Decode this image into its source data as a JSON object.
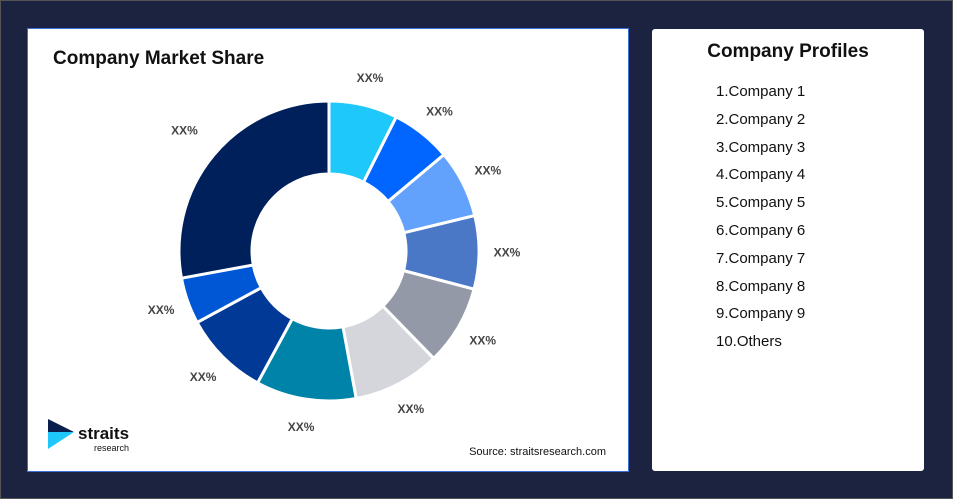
{
  "chart_data": {
    "type": "pie",
    "donut": true,
    "title": "Company Market Share",
    "categories": [
      "Company 1",
      "Company 2",
      "Company 3",
      "Company 4",
      "Company 5",
      "Company 6",
      "Company 7",
      "Company 8",
      "Company 9",
      "Others"
    ],
    "values": [
      7.4,
      6.5,
      7.3,
      7.9,
      8.6,
      9.4,
      10.8,
      9.2,
      5.0,
      27.9
    ],
    "data_labels": [
      "XX%",
      "XX%",
      "XX%",
      "XX%",
      "XX%",
      "XX%",
      "XX%",
      "XX%",
      "XX%",
      "XX%"
    ],
    "colors": [
      "#1ec8fa",
      "#0066ff",
      "#62a2fc",
      "#4a78c6",
      "#9399a6",
      "#d5d6db",
      "#0083a8",
      "#003a96",
      "#0057d6",
      "#00205c"
    ]
  },
  "source": "Source: straitsresearch.com",
  "logo": {
    "text": "straits",
    "sub": "research"
  },
  "profiles": {
    "title": "Company Profiles",
    "items": [
      "1.Company 1",
      "2.Company 2",
      "3.Company 3",
      "4.Company 4",
      "5.Company 5",
      "6.Company 6",
      "7.Company 7",
      "8.Company 8",
      "9.Company 9",
      "10.Others"
    ]
  }
}
